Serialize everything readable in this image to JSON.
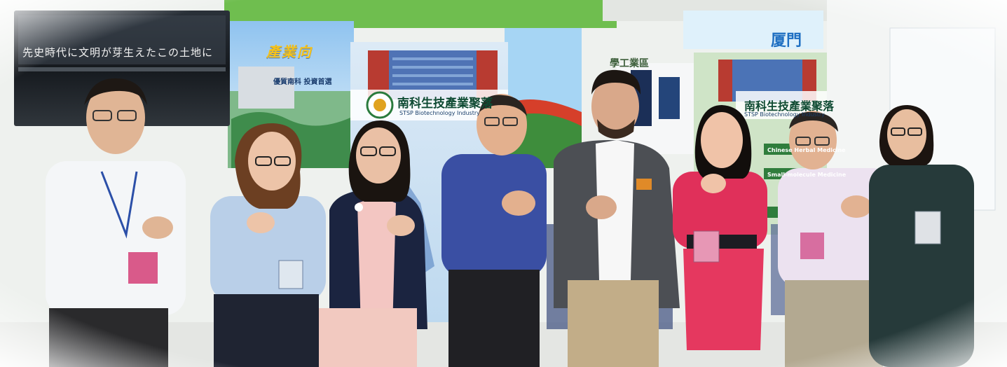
{
  "image": {
    "subject": "group-photo-at-expo-booth",
    "people_count": 8
  },
  "texts": {
    "tv_screen_caption": "先史時代に文明が芽生えたこの土地に",
    "poster_heading": "產業向",
    "poster_subheading": "優質南科 投資首選",
    "banner_title_left": "南科生技產業聚落",
    "banner_subtitle_left": "STSP Biotechnology Industry",
    "banner_title_right": "南科生技產業聚落",
    "banner_subtitle_right": "STSP Biotechnology Industry",
    "booth_sign_partial": "厦門",
    "booth_sign_partial_2": "學工業區",
    "panel_label_1": "Chinese Herbal Medicine",
    "panel_label_2": "Small-molecule Medicine"
  },
  "colors": {
    "backdrop_sky": "#9ccaf0",
    "tv_dark": "#1c2228",
    "booth_green": "#7fc66a",
    "banner_blue": "#2f5fa8"
  }
}
